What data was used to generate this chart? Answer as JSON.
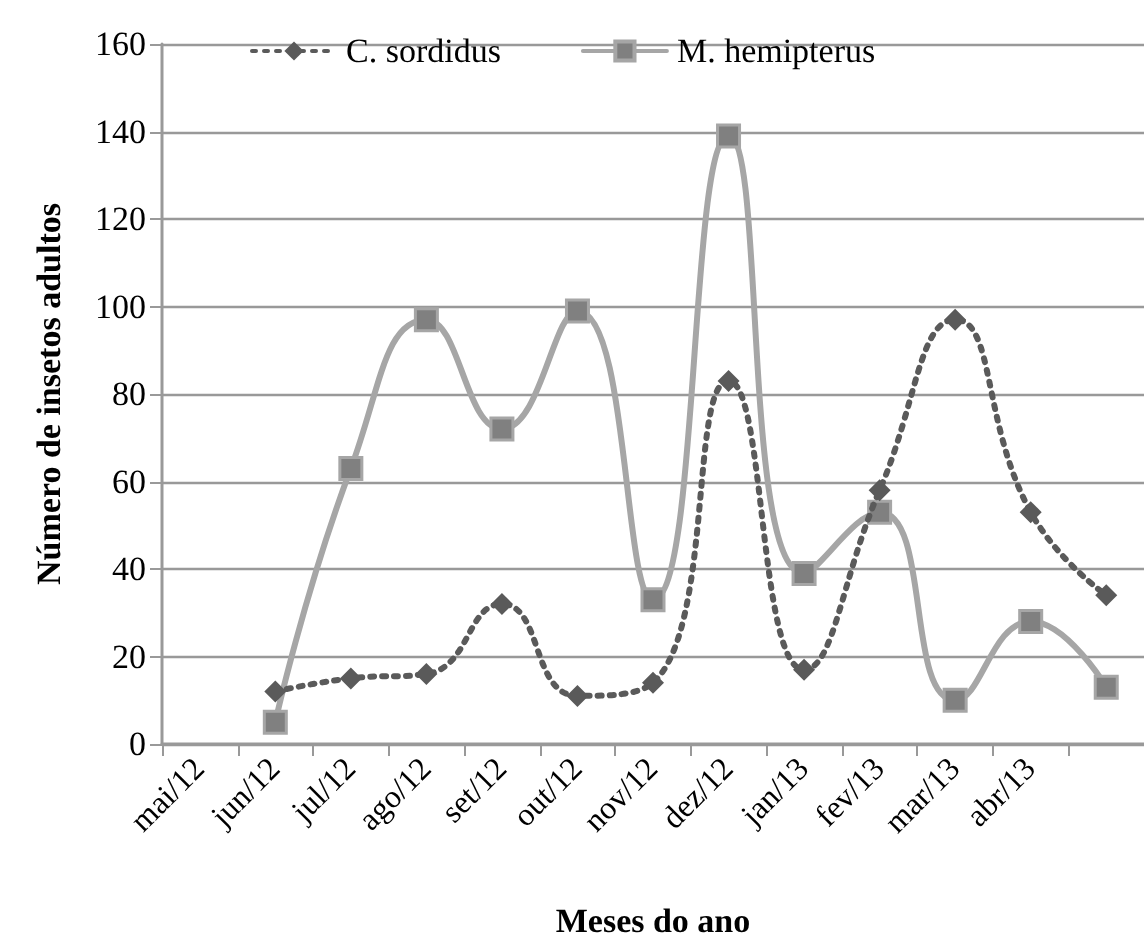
{
  "chart_data": {
    "type": "line",
    "xlabel": "Meses do ano",
    "ylabel": "Número de insetos adultos",
    "categories": [
      "mai/12",
      "jun/12",
      "jul/12",
      "ago/12",
      "set/12",
      "out/12",
      "nov/12",
      "dez/12",
      "jan/13",
      "fev/13",
      "mar/13",
      "abr/13",
      null
    ],
    "series": [
      {
        "name": "C. sordidus",
        "color": "#5a5a5a",
        "marker": "diamond",
        "line_style": "dotted",
        "values": [
          null,
          12,
          15,
          16,
          32,
          11,
          14,
          83,
          17,
          58,
          97,
          53,
          34
        ]
      },
      {
        "name": "M. hemipterus",
        "color": "#a6a6a6",
        "marker": "square",
        "line_style": "solid",
        "values": [
          null,
          5,
          63,
          97,
          72,
          99,
          33,
          139,
          39,
          53,
          10,
          28,
          13
        ]
      }
    ],
    "ylim": [
      0,
      160
    ],
    "yticks": [
      0,
      20,
      40,
      60,
      80,
      100,
      120,
      140,
      160
    ],
    "grid": "y",
    "legend": "top"
  }
}
